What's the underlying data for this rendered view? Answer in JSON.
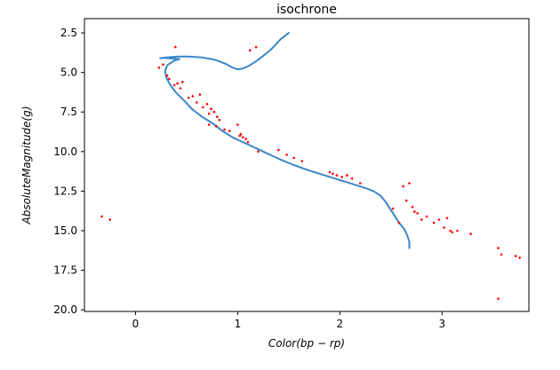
{
  "chart_data": {
    "type": "scatter",
    "title": "isochrone",
    "xlabel": "Color(bp − rp)",
    "ylabel": "AbsoluteMagnitude(g)",
    "xlim": [
      -0.5,
      3.85
    ],
    "ylim": [
      20.1,
      1.6
    ],
    "y_inverted": true,
    "x_ticks": [
      0,
      1,
      2,
      3
    ],
    "y_ticks": [
      2.5,
      5.0,
      7.5,
      10.0,
      12.5,
      15.0,
      17.5,
      20.0
    ],
    "x_tick_labels": [
      "0",
      "1",
      "2",
      "3"
    ],
    "y_tick_labels": [
      "2.5",
      "5.0",
      "7.5",
      "10.0",
      "12.5",
      "15.0",
      "17.5",
      "20.0"
    ],
    "grid": false,
    "colors": {
      "isochrone": "#3a86c8",
      "stars": "#ff0000"
    },
    "series": [
      {
        "kind": "line",
        "x": [
          1.5,
          1.42,
          1.35,
          1.28,
          1.2,
          1.12,
          1.05,
          1.0,
          0.95,
          0.88,
          0.78,
          0.65,
          0.52,
          0.42,
          0.36,
          0.3,
          0.24,
          0.28,
          0.35,
          0.43,
          0.38,
          0.31,
          0.29,
          0.3,
          0.34,
          0.4,
          0.48,
          0.55,
          0.65,
          0.75,
          0.85,
          0.95,
          1.05,
          1.15,
          1.25,
          1.4,
          1.55,
          1.7,
          1.85,
          1.95,
          2.05,
          2.15,
          2.25,
          2.33,
          2.4,
          2.45,
          2.49,
          2.53,
          2.58,
          2.63,
          2.66,
          2.68,
          2.68
        ],
        "y": [
          2.5,
          2.9,
          3.4,
          3.8,
          4.2,
          4.55,
          4.75,
          4.8,
          4.7,
          4.45,
          4.2,
          4.05,
          4.0,
          4.0,
          4.02,
          4.05,
          4.1,
          4.08,
          4.12,
          4.15,
          4.25,
          4.55,
          4.9,
          5.3,
          5.8,
          6.3,
          6.8,
          7.3,
          7.8,
          8.2,
          8.7,
          9.1,
          9.4,
          9.7,
          10.0,
          10.45,
          10.85,
          11.2,
          11.5,
          11.7,
          11.9,
          12.1,
          12.3,
          12.5,
          12.8,
          13.2,
          13.6,
          14.0,
          14.5,
          14.9,
          15.3,
          15.7,
          16.1
        ]
      },
      {
        "kind": "points",
        "x": [
          -0.33,
          -0.25,
          0.39,
          0.23,
          0.27,
          0.31,
          0.33,
          0.38,
          0.41,
          0.44,
          0.46,
          0.52,
          0.56,
          0.6,
          0.63,
          0.66,
          0.7,
          0.72,
          0.74,
          0.77,
          0.8,
          0.82,
          0.72,
          0.79,
          0.87,
          0.92,
          1.0,
          1.03,
          1.05,
          1.08,
          1.1,
          1.02,
          1.12,
          1.18,
          1.2,
          1.4,
          1.48,
          1.55,
          1.63,
          1.9,
          1.93,
          1.97,
          2.02,
          2.07,
          2.12,
          2.2,
          2.52,
          2.58,
          2.62,
          2.65,
          2.68,
          2.71,
          2.73,
          2.76,
          2.8,
          2.85,
          2.92,
          2.97,
          3.02,
          3.05,
          3.08,
          3.1,
          3.15,
          3.28,
          3.55,
          3.58,
          3.72,
          3.76,
          3.55
        ],
        "y": [
          14.1,
          14.3,
          3.4,
          4.7,
          4.5,
          5.2,
          5.4,
          5.8,
          5.7,
          6.0,
          5.6,
          6.6,
          6.5,
          6.9,
          6.4,
          7.2,
          7.0,
          7.6,
          7.3,
          7.5,
          7.8,
          8.0,
          8.3,
          8.4,
          8.6,
          8.7,
          8.3,
          8.9,
          9.1,
          9.2,
          9.4,
          9.0,
          3.6,
          3.4,
          10.0,
          9.9,
          10.2,
          10.4,
          10.6,
          11.3,
          11.4,
          11.5,
          11.6,
          11.5,
          11.7,
          12.0,
          13.6,
          14.5,
          12.2,
          13.1,
          12.0,
          13.5,
          13.8,
          13.9,
          14.3,
          14.1,
          14.5,
          14.3,
          14.8,
          14.2,
          15.0,
          15.1,
          15.0,
          15.2,
          16.1,
          16.5,
          16.6,
          16.7,
          19.3
        ]
      }
    ]
  }
}
